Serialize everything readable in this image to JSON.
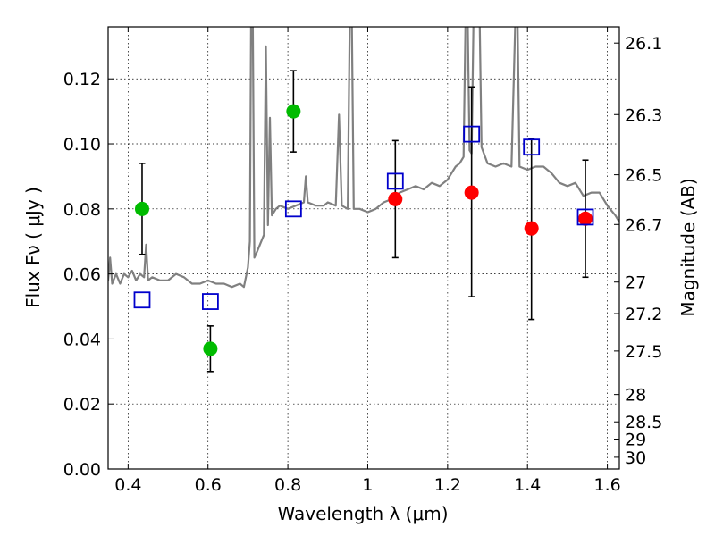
{
  "chart_data": {
    "type": "scatter",
    "xlabel": "Wavelength  λ (μm)",
    "ylabel": "Flux  Fν  ( μJy )",
    "y2label": "Magnitude (AB)",
    "xlim": [
      0.35,
      1.63
    ],
    "ylim": [
      0.0,
      0.136
    ],
    "grid": true,
    "x_ticks": [
      0.4,
      0.6,
      0.8,
      1.0,
      1.2,
      1.4,
      1.6
    ],
    "x_tick_labels": [
      "0.4",
      "0.6",
      "0.8",
      "1",
      "1.2",
      "1.4",
      "1.6"
    ],
    "y_ticks": [
      0.0,
      0.02,
      0.04,
      0.06,
      0.08,
      0.1,
      0.12
    ],
    "y_tick_labels": [
      "0.00",
      "0.02",
      "0.04",
      "0.06",
      "0.08",
      "0.10",
      "0.12"
    ],
    "y2_ticks": [
      {
        "flux": 0.131,
        "label": "26.1"
      },
      {
        "flux": 0.109,
        "label": "26.3"
      },
      {
        "flux": 0.0905,
        "label": "26.5"
      },
      {
        "flux": 0.0752,
        "label": "26.7"
      },
      {
        "flux": 0.0575,
        "label": "27"
      },
      {
        "flux": 0.0478,
        "label": "27.2"
      },
      {
        "flux": 0.0363,
        "label": "27.5"
      },
      {
        "flux": 0.0229,
        "label": "28"
      },
      {
        "flux": 0.0145,
        "label": "28.5"
      },
      {
        "flux": 0.0092,
        "label": "29"
      },
      {
        "flux": 0.0036,
        "label": "30"
      }
    ],
    "series": [
      {
        "marker": "circle",
        "color": "#00bb00",
        "points": [
          {
            "x": 0.435,
            "y": 0.08,
            "yerr_low": 0.066,
            "yerr_high": 0.094
          },
          {
            "x": 0.606,
            "y": 0.037,
            "yerr_low": 0.03,
            "yerr_high": 0.044
          },
          {
            "x": 0.814,
            "y": 0.11,
            "yerr_low": 0.0975,
            "yerr_high": 0.1225
          }
        ]
      },
      {
        "marker": "circle",
        "color": "#ff0000",
        "points": [
          {
            "x": 1.069,
            "y": 0.083,
            "yerr_low": 0.065,
            "yerr_high": 0.101
          },
          {
            "x": 1.26,
            "y": 0.085,
            "yerr_low": 0.053,
            "yerr_high": 0.1175
          },
          {
            "x": 1.41,
            "y": 0.074,
            "yerr_low": 0.046,
            "yerr_high": 0.1015
          },
          {
            "x": 1.545,
            "y": 0.077,
            "yerr_low": 0.059,
            "yerr_high": 0.095
          }
        ]
      },
      {
        "marker": "open-square",
        "color": "#0000cc",
        "points": [
          {
            "x": 0.435,
            "y": 0.052
          },
          {
            "x": 0.606,
            "y": 0.0515
          },
          {
            "x": 0.814,
            "y": 0.08
          },
          {
            "x": 1.069,
            "y": 0.0885
          },
          {
            "x": 1.26,
            "y": 0.103
          },
          {
            "x": 1.41,
            "y": 0.099
          },
          {
            "x": 1.545,
            "y": 0.0775
          }
        ]
      },
      {
        "type": "line",
        "color": "#808080",
        "points": [
          [
            0.35,
            0.058
          ],
          [
            0.355,
            0.065
          ],
          [
            0.36,
            0.057
          ],
          [
            0.37,
            0.06
          ],
          [
            0.38,
            0.057
          ],
          [
            0.39,
            0.06
          ],
          [
            0.4,
            0.059
          ],
          [
            0.41,
            0.061
          ],
          [
            0.42,
            0.058
          ],
          [
            0.43,
            0.06
          ],
          [
            0.44,
            0.059
          ],
          [
            0.445,
            0.069
          ],
          [
            0.45,
            0.058
          ],
          [
            0.46,
            0.059
          ],
          [
            0.48,
            0.058
          ],
          [
            0.5,
            0.058
          ],
          [
            0.52,
            0.06
          ],
          [
            0.54,
            0.059
          ],
          [
            0.56,
            0.057
          ],
          [
            0.58,
            0.057
          ],
          [
            0.6,
            0.058
          ],
          [
            0.62,
            0.057
          ],
          [
            0.64,
            0.057
          ],
          [
            0.66,
            0.056
          ],
          [
            0.68,
            0.057
          ],
          [
            0.69,
            0.056
          ],
          [
            0.7,
            0.062
          ],
          [
            0.705,
            0.07
          ],
          [
            0.708,
            0.14
          ],
          [
            0.712,
            0.14
          ],
          [
            0.716,
            0.065
          ],
          [
            0.72,
            0.066
          ],
          [
            0.73,
            0.069
          ],
          [
            0.74,
            0.072
          ],
          [
            0.745,
            0.13
          ],
          [
            0.75,
            0.075
          ],
          [
            0.755,
            0.108
          ],
          [
            0.76,
            0.078
          ],
          [
            0.77,
            0.08
          ],
          [
            0.78,
            0.081
          ],
          [
            0.8,
            0.08
          ],
          [
            0.82,
            0.081
          ],
          [
            0.84,
            0.082
          ],
          [
            0.845,
            0.09
          ],
          [
            0.85,
            0.082
          ],
          [
            0.87,
            0.081
          ],
          [
            0.89,
            0.081
          ],
          [
            0.9,
            0.082
          ],
          [
            0.92,
            0.081
          ],
          [
            0.928,
            0.109
          ],
          [
            0.935,
            0.081
          ],
          [
            0.95,
            0.08
          ],
          [
            0.955,
            0.14
          ],
          [
            0.96,
            0.14
          ],
          [
            0.965,
            0.08
          ],
          [
            0.98,
            0.08
          ],
          [
            1.0,
            0.079
          ],
          [
            1.02,
            0.08
          ],
          [
            1.04,
            0.082
          ],
          [
            1.06,
            0.083
          ],
          [
            1.08,
            0.085
          ],
          [
            1.1,
            0.086
          ],
          [
            1.12,
            0.087
          ],
          [
            1.14,
            0.086
          ],
          [
            1.16,
            0.088
          ],
          [
            1.18,
            0.087
          ],
          [
            1.2,
            0.089
          ],
          [
            1.22,
            0.093
          ],
          [
            1.23,
            0.094
          ],
          [
            1.24,
            0.096
          ],
          [
            1.245,
            0.14
          ],
          [
            1.25,
            0.14
          ],
          [
            1.255,
            0.098
          ],
          [
            1.26,
            0.097
          ],
          [
            1.265,
            0.14
          ],
          [
            1.27,
            0.14
          ],
          [
            1.275,
            0.14
          ],
          [
            1.28,
            0.14
          ],
          [
            1.285,
            0.099
          ],
          [
            1.3,
            0.094
          ],
          [
            1.32,
            0.093
          ],
          [
            1.34,
            0.094
          ],
          [
            1.36,
            0.093
          ],
          [
            1.37,
            0.14
          ],
          [
            1.375,
            0.14
          ],
          [
            1.38,
            0.093
          ],
          [
            1.4,
            0.092
          ],
          [
            1.42,
            0.093
          ],
          [
            1.44,
            0.093
          ],
          [
            1.46,
            0.091
          ],
          [
            1.48,
            0.088
          ],
          [
            1.5,
            0.087
          ],
          [
            1.52,
            0.088
          ],
          [
            1.54,
            0.084
          ],
          [
            1.56,
            0.085
          ],
          [
            1.58,
            0.085
          ],
          [
            1.6,
            0.081
          ],
          [
            1.62,
            0.078
          ],
          [
            1.63,
            0.076
          ]
        ]
      }
    ]
  }
}
